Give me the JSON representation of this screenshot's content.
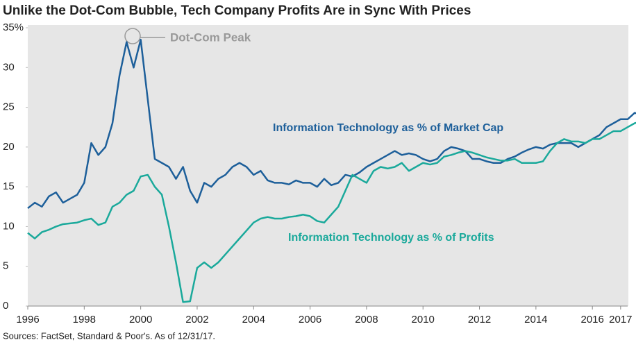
{
  "chart_data": {
    "type": "line",
    "title": "Unlike the Dot-Com Bubble, Tech Company Profits Are in Sync With Prices",
    "source": "Sources: FactSet, Standard & Poor's. As of 12/31/17.",
    "annotation": "Dot-Com Peak",
    "x": [
      1996,
      1996.25,
      1996.5,
      1996.75,
      1997,
      1997.25,
      1997.5,
      1997.75,
      1998,
      1998.25,
      1998.5,
      1998.75,
      1999,
      1999.25,
      1999.5,
      1999.75,
      2000,
      2000.25,
      2000.5,
      2000.75,
      2001,
      2001.25,
      2001.5,
      2001.75,
      2002,
      2002.25,
      2002.5,
      2002.75,
      2003,
      2003.25,
      2003.5,
      2003.75,
      2004,
      2004.25,
      2004.5,
      2004.75,
      2005,
      2005.25,
      2005.5,
      2005.75,
      2006,
      2006.25,
      2006.5,
      2006.75,
      2007,
      2007.25,
      2007.5,
      2007.75,
      2008,
      2008.25,
      2008.5,
      2008.75,
      2009,
      2009.25,
      2009.5,
      2009.75,
      2010,
      2010.25,
      2010.5,
      2010.75,
      2011,
      2011.25,
      2011.5,
      2011.75,
      2012,
      2012.25,
      2012.5,
      2012.75,
      2013,
      2013.25,
      2013.5,
      2013.75,
      2014,
      2014.25,
      2014.5,
      2014.75,
      2015,
      2015.25,
      2015.5,
      2015.75,
      2016,
      2016.25,
      2016.5,
      2016.75,
      2017,
      2017.25,
      2017.5,
      2017.75
    ],
    "series": [
      {
        "name": "Information Technology as % of Market Cap",
        "color": "#1d5f9a",
        "values": [
          12.3,
          13.0,
          12.5,
          13.8,
          14.3,
          13.0,
          13.5,
          14.0,
          15.5,
          20.5,
          19.0,
          20.0,
          23.0,
          29.0,
          33.2,
          30.0,
          33.5,
          26.0,
          18.5,
          18.0,
          17.5,
          16.0,
          17.5,
          14.5,
          13.0,
          15.5,
          15.0,
          16.0,
          16.5,
          17.5,
          18.0,
          17.5,
          16.5,
          17.0,
          15.8,
          15.5,
          15.5,
          15.3,
          15.8,
          15.5,
          15.5,
          15.0,
          16.0,
          15.2,
          15.5,
          16.5,
          16.3,
          16.8,
          17.5,
          18.0,
          18.5,
          19.0,
          19.5,
          19.0,
          19.2,
          19.0,
          18.5,
          18.2,
          18.5,
          19.5,
          20.0,
          19.8,
          19.5,
          18.5,
          18.5,
          18.2,
          18.0,
          18.0,
          18.5,
          18.8,
          19.3,
          19.7,
          20.0,
          19.8,
          20.3,
          20.5,
          20.5,
          20.5,
          20.0,
          20.5,
          21.0,
          21.5,
          22.5,
          23.0,
          23.5,
          23.5,
          24.3,
          24.0
        ]
      },
      {
        "name": "Information Technology as % of Profits",
        "color": "#1aa99b",
        "values": [
          9.2,
          8.5,
          9.3,
          9.6,
          10.0,
          10.3,
          10.4,
          10.5,
          10.8,
          11.0,
          10.2,
          10.5,
          12.5,
          13.0,
          14.0,
          14.5,
          16.3,
          16.5,
          15.0,
          14.0,
          10.0,
          5.5,
          0.5,
          0.6,
          4.8,
          5.5,
          4.8,
          5.5,
          6.5,
          7.5,
          8.5,
          9.5,
          10.5,
          11.0,
          11.2,
          11.0,
          11.0,
          11.2,
          11.3,
          11.5,
          11.3,
          10.7,
          10.5,
          11.5,
          12.5,
          14.5,
          16.5,
          16.0,
          15.5,
          17.0,
          17.5,
          17.3,
          17.5,
          18.0,
          17.0,
          17.5,
          18.0,
          17.8,
          18.0,
          18.8,
          19.0,
          19.3,
          19.5,
          19.3,
          19.0,
          18.7,
          18.5,
          18.3,
          18.3,
          18.5,
          18.0,
          18.0,
          18.0,
          18.2,
          19.5,
          20.5,
          21.0,
          20.7,
          20.7,
          20.5,
          21.0,
          21.0,
          21.5,
          22.0,
          22.0,
          22.5,
          23.0,
          23.2
        ]
      }
    ],
    "xlim": [
      1996,
      2017.25
    ],
    "xticks": [
      1996,
      1998,
      2000,
      2002,
      2004,
      2006,
      2008,
      2010,
      2012,
      2014,
      2016,
      2017
    ],
    "ylim": [
      0,
      35
    ],
    "yticks": [
      0,
      5,
      10,
      15,
      20,
      25,
      30,
      {
        "value": 35,
        "label": "35%"
      }
    ],
    "grid": false
  }
}
